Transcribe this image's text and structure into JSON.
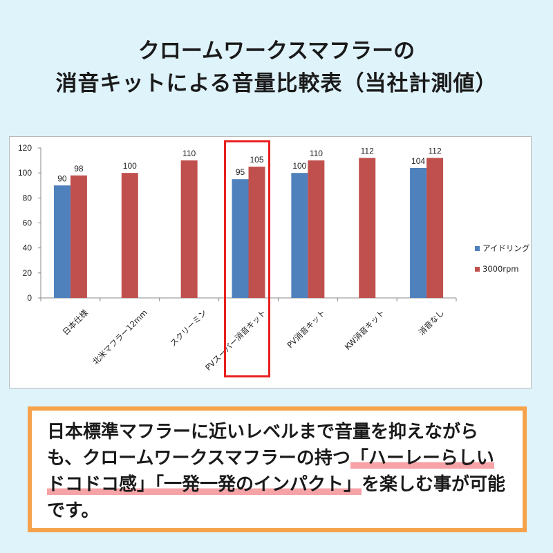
{
  "title": {
    "line1": "クロームワークスマフラーの",
    "line2": "消音キットによる音量比較表（当社計測値）"
  },
  "chart_data": {
    "type": "bar",
    "categories": [
      "日本仕様",
      "北米マフラー12mm",
      "スクリーミン",
      "PVスーパー消音キット",
      "PV消音キット",
      "KW消音キット",
      "消音なし"
    ],
    "series": [
      {
        "name": "アイドリング",
        "color": "#4f81bd",
        "values": [
          90,
          null,
          null,
          95,
          100,
          null,
          104
        ]
      },
      {
        "name": "3000rpm",
        "color": "#c0504d",
        "values": [
          98,
          100,
          110,
          105,
          110,
          112,
          112
        ]
      }
    ],
    "ylim": [
      0,
      120
    ],
    "yticks": [
      0,
      20,
      40,
      60,
      80,
      100,
      120
    ],
    "legend_position": "right",
    "highlighted_category": "PVスーパー消音キット"
  },
  "caption": {
    "part1": "日本標準マフラーに近いレベルまで音量を抑えながらも、クロームワークスマフラーの持つ",
    "highlight1": "「ハーレーらしいドコドコ感」",
    "highlight2": "「一発一発のインパクト」",
    "part2": "を楽しむ事が可能です。"
  }
}
